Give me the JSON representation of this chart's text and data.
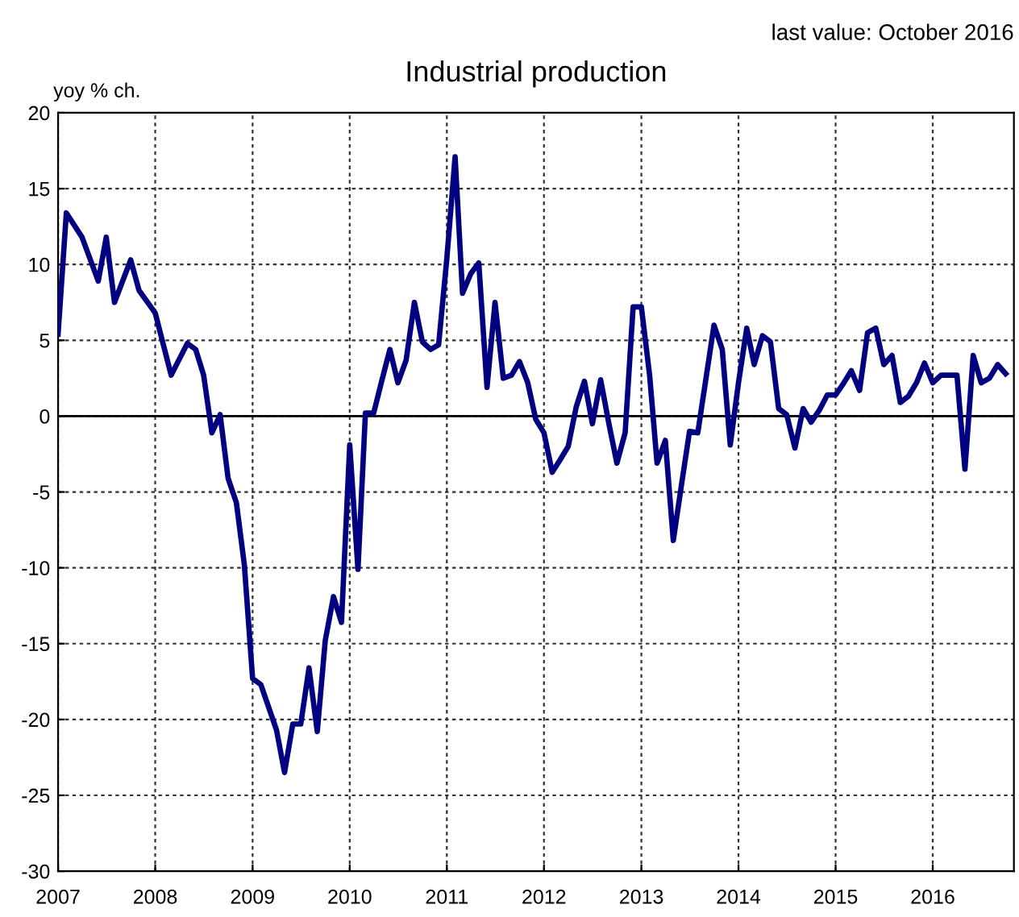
{
  "chart_data": {
    "type": "line",
    "title": "Industrial production",
    "ylabel": "yoy % ch.",
    "annotations": [
      "last value: October 2016"
    ],
    "x": [
      "2007-01",
      "2007-02",
      "2007-04",
      "2007-06",
      "2007-07",
      "2007-08",
      "2007-10",
      "2007-11",
      "2008-01",
      "2008-03",
      "2008-05",
      "2008-06",
      "2008-07",
      "2008-08",
      "2008-09",
      "2008-10",
      "2008-11",
      "2008-12",
      "2009-01",
      "2009-02",
      "2009-04",
      "2009-05",
      "2009-06",
      "2009-07",
      "2009-08",
      "2009-09",
      "2009-10",
      "2009-11",
      "2009-12",
      "2010-01",
      "2010-02",
      "2010-03",
      "2010-04",
      "2010-05",
      "2010-06",
      "2010-07",
      "2010-08",
      "2010-09",
      "2010-10",
      "2010-11",
      "2010-12",
      "2011-01",
      "2011-02",
      "2011-03",
      "2011-04",
      "2011-05",
      "2011-06",
      "2011-07",
      "2011-08",
      "2011-09",
      "2011-10",
      "2011-11",
      "2011-12",
      "2012-01",
      "2012-02",
      "2012-03",
      "2012-04",
      "2012-05",
      "2012-06",
      "2012-07",
      "2012-08",
      "2012-09",
      "2012-10",
      "2012-11",
      "2012-12",
      "2013-01",
      "2013-02",
      "2013-03",
      "2013-04",
      "2013-05",
      "2013-06",
      "2013-07",
      "2013-08",
      "2013-10",
      "2013-11",
      "2013-12",
      "2014-01",
      "2014-02",
      "2014-03",
      "2014-04",
      "2014-05",
      "2014-06",
      "2014-07",
      "2014-08",
      "2014-09",
      "2014-10",
      "2014-11",
      "2014-12",
      "2015-01",
      "2015-02",
      "2015-03",
      "2015-04",
      "2015-05",
      "2015-06",
      "2015-07",
      "2015-08",
      "2015-09",
      "2015-10",
      "2015-11",
      "2015-12",
      "2016-01",
      "2016-02",
      "2016-03",
      "2016-04",
      "2016-05",
      "2016-06",
      "2016-07",
      "2016-08",
      "2016-09",
      "2016-10"
    ],
    "series": [
      {
        "color": "#000080",
        "values": [
          5.4,
          13.4,
          11.8,
          8.9,
          11.8,
          7.5,
          10.3,
          8.3,
          6.8,
          2.7,
          4.8,
          4.4,
          2.7,
          -1.1,
          0.1,
          -4.1,
          -5.7,
          -9.8,
          -17.3,
          -17.7,
          -20.7,
          -23.5,
          -20.3,
          -20.3,
          -16.6,
          -20.8,
          -14.8,
          -11.9,
          -13.6,
          -1.9,
          -10.1,
          0.2,
          0.2,
          2.3,
          4.4,
          2.2,
          3.7,
          7.5,
          4.9,
          4.4,
          4.7,
          10.4,
          17.1,
          8.1,
          9.4,
          10.1,
          1.9,
          7.5,
          2.5,
          2.7,
          3.6,
          2.2,
          -0.2,
          -1.1,
          -3.7,
          -2.9,
          -2.0,
          0.6,
          2.3,
          -0.5,
          2.4,
          -0.5,
          -3.1,
          -1.1,
          7.2,
          7.2,
          2.7,
          -3.1,
          -1.6,
          -8.2,
          -4.5,
          -1.0,
          -1.1,
          6.0,
          4.4,
          -1.9,
          2.2,
          5.8,
          3.4,
          5.3,
          4.9,
          0.5,
          0.1,
          -2.1,
          0.5,
          -0.4,
          0.4,
          1.4,
          1.4,
          2.2,
          3.0,
          1.7,
          5.5,
          5.8,
          3.4,
          4.0,
          0.9,
          1.3,
          2.2,
          3.5,
          2.2,
          2.7,
          2.7,
          2.7,
          -3.5,
          4.0,
          2.2,
          2.5,
          3.4,
          2.8
        ]
      }
    ],
    "xlim": [
      "2007-01",
      "2016-11"
    ],
    "xticks": [
      "2007",
      "2008",
      "2009",
      "2010",
      "2011",
      "2012",
      "2013",
      "2014",
      "2015",
      "2016"
    ],
    "ylim": [
      -30,
      20
    ],
    "yticks": [
      -30,
      -25,
      -20,
      -15,
      -10,
      -5,
      0,
      5,
      10,
      15,
      20
    ],
    "ref_lines": [
      {
        "axis": "y",
        "value": 0,
        "color": "#000000",
        "line_style": "solid"
      }
    ],
    "grid": true,
    "line_style": "solid",
    "marker": "none"
  }
}
